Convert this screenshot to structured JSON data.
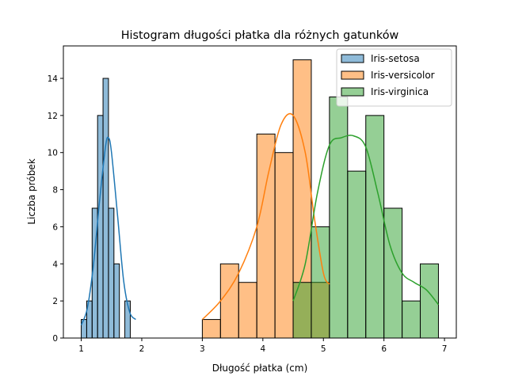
{
  "chart_data": {
    "type": "histogram",
    "title": "Histogram długości płatka dla różnych gatunków",
    "xlabel": "Długość płatka (cm)",
    "ylabel": "Liczba próbek",
    "xlim": [
      0.705,
      7.195
    ],
    "ylim": [
      0,
      15.75
    ],
    "xticks": [
      1,
      2,
      3,
      4,
      5,
      6,
      7
    ],
    "yticks": [
      0,
      2,
      4,
      6,
      8,
      10,
      12,
      14
    ],
    "grid": false,
    "legend": {
      "placement": "top-right",
      "entries": [
        "Iris-setosa",
        "Iris-versicolor",
        "Iris-virginica"
      ]
    },
    "series": [
      {
        "name": "Iris-setosa",
        "color": "#1f77b4",
        "bin_edges": [
          1.0,
          1.09,
          1.18,
          1.27,
          1.36,
          1.45,
          1.54,
          1.63,
          1.72,
          1.81,
          1.9
        ],
        "counts": [
          1,
          2,
          7,
          12,
          14,
          7,
          4,
          0,
          2,
          0
        ],
        "kde": [
          [
            1.0,
            0.7
          ],
          [
            1.1,
            1.6
          ],
          [
            1.2,
            3.9
          ],
          [
            1.3,
            7.3
          ],
          [
            1.4,
            10.3
          ],
          [
            1.45,
            10.8
          ],
          [
            1.5,
            10.0
          ],
          [
            1.6,
            6.6
          ],
          [
            1.7,
            3.1
          ],
          [
            1.8,
            1.4
          ],
          [
            1.9,
            1.0
          ]
        ]
      },
      {
        "name": "Iris-versicolor",
        "color": "#ff7f0e",
        "bin_edges": [
          3.0,
          3.3,
          3.6,
          3.9,
          4.2,
          4.5,
          4.8,
          5.1
        ],
        "counts": [
          1,
          4,
          3,
          11,
          10,
          15,
          3
        ],
        "kde": [
          [
            3.0,
            1.0
          ],
          [
            3.3,
            2.0
          ],
          [
            3.6,
            3.5
          ],
          [
            3.9,
            6.0
          ],
          [
            4.1,
            9.0
          ],
          [
            4.3,
            11.5
          ],
          [
            4.5,
            12.0
          ],
          [
            4.7,
            10.0
          ],
          [
            4.85,
            6.5
          ],
          [
            5.0,
            3.5
          ],
          [
            5.1,
            2.9
          ]
        ]
      },
      {
        "name": "Iris-virginica",
        "color": "#2ca02c",
        "bin_edges": [
          4.5,
          4.8,
          5.1,
          5.4,
          5.7,
          6.0,
          6.3,
          6.6,
          6.9
        ],
        "counts": [
          3,
          6,
          13,
          9,
          12,
          7,
          2,
          4
        ],
        "kde": [
          [
            4.5,
            2.0
          ],
          [
            4.7,
            4.0
          ],
          [
            4.9,
            7.8
          ],
          [
            5.1,
            10.4
          ],
          [
            5.3,
            10.8
          ],
          [
            5.5,
            10.9
          ],
          [
            5.7,
            10.3
          ],
          [
            5.9,
            7.8
          ],
          [
            6.1,
            5.0
          ],
          [
            6.3,
            3.5
          ],
          [
            6.5,
            3.0
          ],
          [
            6.7,
            2.6
          ],
          [
            6.9,
            1.8
          ]
        ]
      }
    ]
  }
}
